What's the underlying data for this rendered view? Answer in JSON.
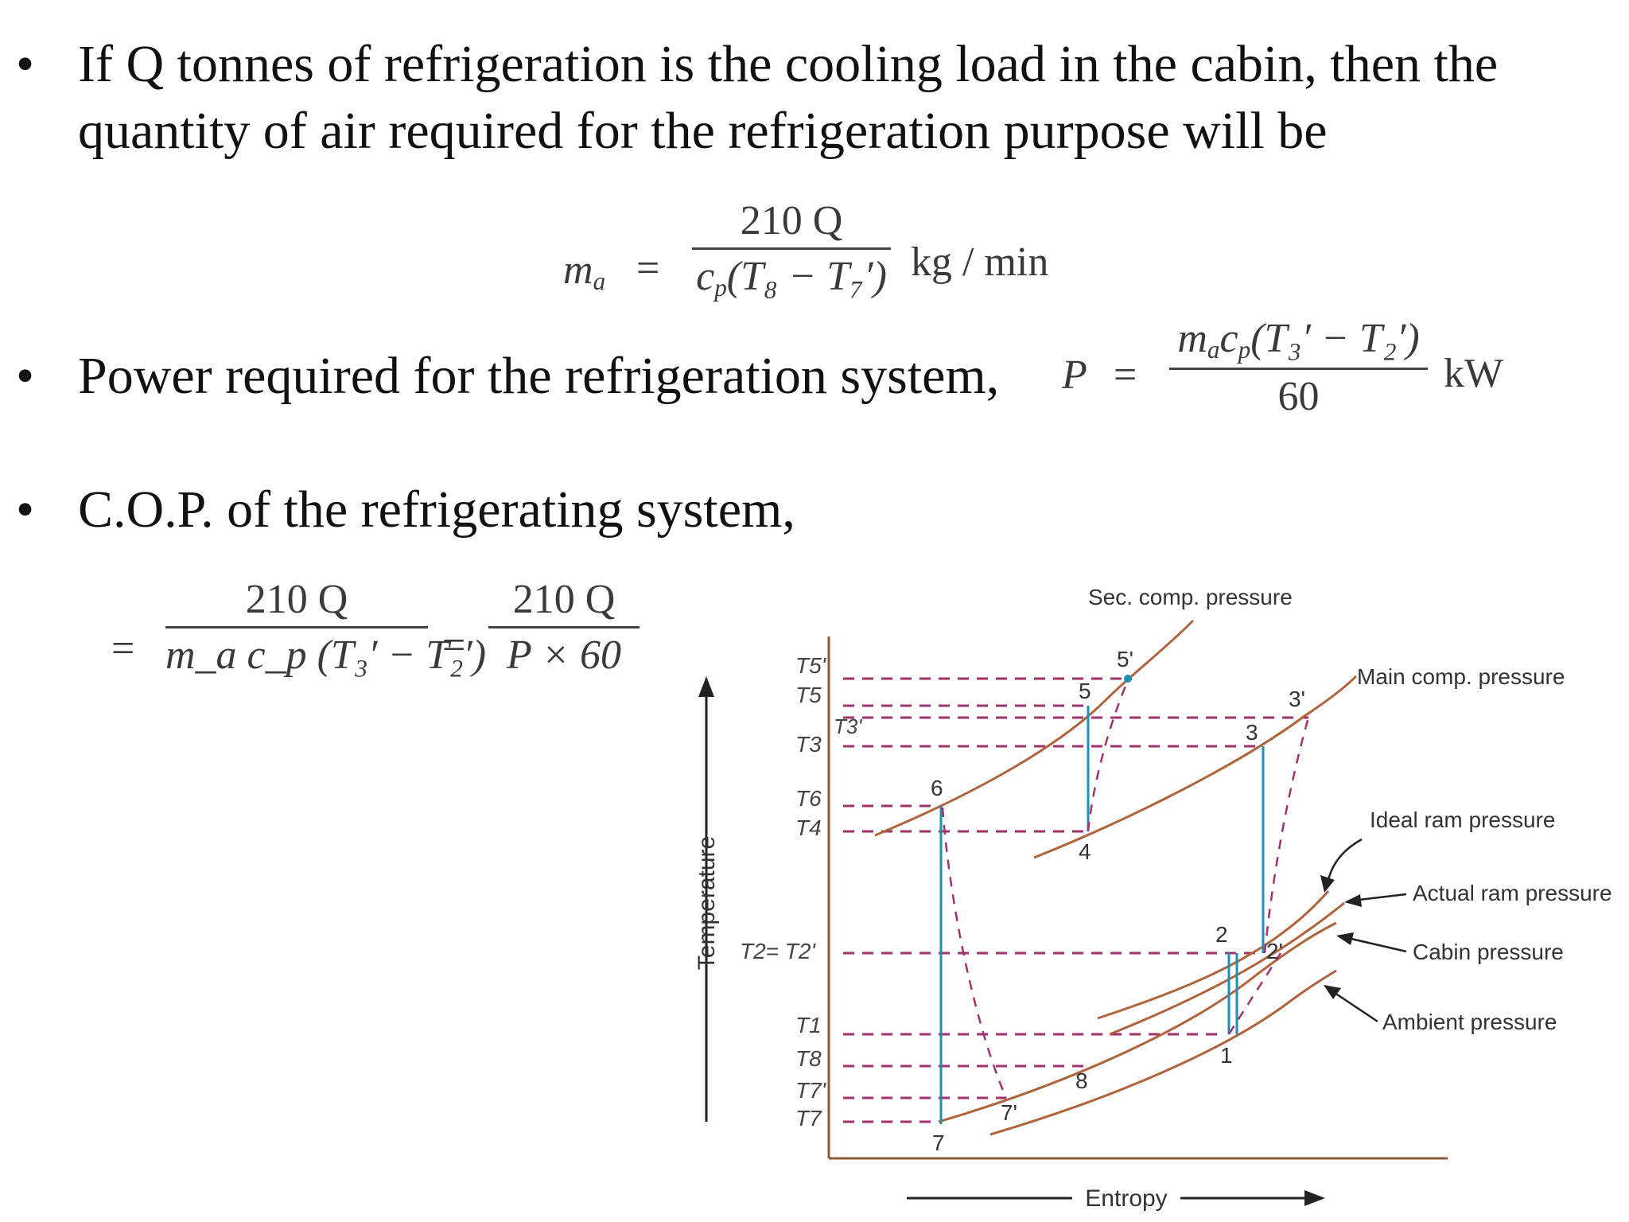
{
  "bullets": [
    {
      "line1": "If Q tonnes of refrigeration is the cooling load in the cabin, then the",
      "line2": "quantity of air required for the refrigeration purpose will be"
    },
    {
      "text": "Power required for the refrigeration system,"
    },
    {
      "text": "C.O.P. of the  refrigerating system,"
    }
  ],
  "bullet_symbol": "•",
  "eq1": {
    "lhs": "m",
    "lhs_sub": "a",
    "equals": "=",
    "num": "210 Q",
    "den_prefix": "c",
    "den_sub": "p",
    "den_body": "(T₈ − T₇′)",
    "unit": "kg / min"
  },
  "eq2": {
    "lhs": "P",
    "equals": "=",
    "num_prefix": "m",
    "num_sub1": "a",
    "num_c": "c",
    "num_sub2": "p",
    "num_body": "(T₃′ − T₂′)",
    "den": "60",
    "unit": "kW"
  },
  "eq3": {
    "equals1": "=",
    "num1": "210 Q",
    "den1": "m_a c_p (T₃′ − T₂′)",
    "equals2": "=",
    "num2": "210 Q",
    "den2": "P × 60"
  },
  "diagram": {
    "x_axis_label": "Entropy",
    "y_axis_label": "Temperature",
    "y_ticks": [
      "T5'",
      "T5",
      "T3",
      "T6",
      "T4",
      "T2= T2'",
      "T1",
      "T8",
      "T7'",
      "T7"
    ],
    "inner_label": "T3'",
    "curve_labels": [
      "Sec. comp. pressure",
      "Main comp. pressure",
      "Ideal ram pressure",
      "Actual ram pressure",
      "Cabin pressure",
      "Ambient pressure"
    ],
    "point_labels": [
      "1",
      "2",
      "2'",
      "3",
      "3'",
      "4",
      "5",
      "5'",
      "6",
      "7",
      "7'",
      "8"
    ]
  }
}
